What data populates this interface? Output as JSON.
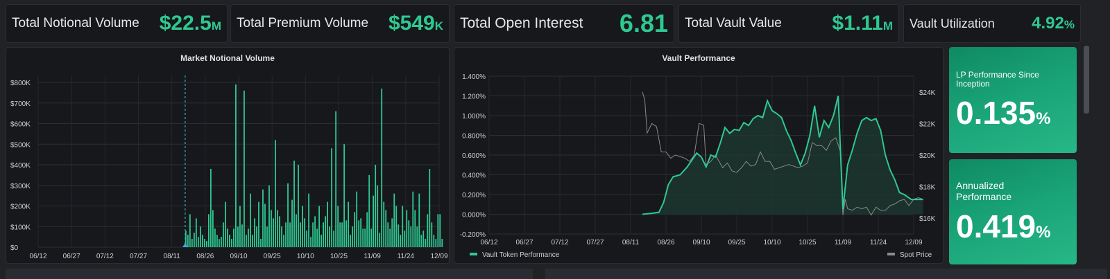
{
  "stats": [
    {
      "label": "Total Notional Volume",
      "value": "$22.5",
      "suffix": "M"
    },
    {
      "label": "Total Premium Volume",
      "value": "$549",
      "suffix": "K"
    },
    {
      "label": "Total Open Interest",
      "value": "6.81",
      "suffix": ""
    },
    {
      "label": "Total Vault Value",
      "value": "$1.11",
      "suffix": "M"
    },
    {
      "label": "Vault Utilization",
      "value": "4.92",
      "suffix": "%"
    }
  ],
  "cards": [
    {
      "title": "LP Performance Since Inception",
      "value": "0.135",
      "suffix": "%"
    },
    {
      "title": "Annualized Performance",
      "value": "0.419",
      "suffix": "%"
    }
  ],
  "colors": {
    "accent": "#2ec991",
    "spot": "#8a8a8a",
    "panel": "#17181c"
  },
  "chart_data": [
    {
      "type": "bar",
      "title": "Market Notional Volume",
      "x_ticks": [
        "06/12",
        "06/27",
        "07/12",
        "07/27",
        "08/11",
        "08/26",
        "09/10",
        "09/25",
        "10/10",
        "10/25",
        "11/09",
        "11/24",
        "12/09"
      ],
      "y_ticks": [
        "$0",
        "$100K",
        "$200K",
        "$300K",
        "$400K",
        "$500K",
        "$600K",
        "$700K",
        "$800K"
      ],
      "ylim": [
        0,
        800000
      ],
      "marker_date": "08/17",
      "values": [
        80000,
        60000,
        160000,
        40000,
        70000,
        140000,
        50000,
        100000,
        60000,
        40000,
        30000,
        160000,
        380000,
        180000,
        90000,
        60000,
        40000,
        50000,
        120000,
        220000,
        90000,
        60000,
        40000,
        90000,
        790000,
        100000,
        200000,
        110000,
        760000,
        60000,
        90000,
        260000,
        60000,
        140000,
        100000,
        220000,
        40000,
        280000,
        210000,
        100000,
        300000,
        180000,
        140000,
        520000,
        180000,
        150000,
        100000,
        60000,
        120000,
        310000,
        120000,
        230000,
        420000,
        160000,
        400000,
        120000,
        200000,
        140000,
        80000,
        260000,
        50000,
        120000,
        150000,
        90000,
        200000,
        60000,
        120000,
        150000,
        220000,
        100000,
        480000,
        80000,
        660000,
        200000,
        120000,
        120000,
        500000,
        130000,
        220000,
        60000,
        100000,
        170000,
        270000,
        130000,
        140000,
        90000,
        90000,
        170000,
        350000,
        90000,
        250000,
        400000,
        300000,
        70000,
        770000,
        220000,
        180000,
        120000,
        90000,
        140000,
        260000,
        200000,
        110000,
        60000,
        200000,
        80000,
        180000,
        130000,
        100000,
        270000,
        180000,
        100000,
        260000,
        60000,
        80000,
        40000,
        160000,
        380000,
        120000,
        60000,
        40000,
        160000,
        160000,
        40000
      ],
      "values_start_date": "08/17"
    },
    {
      "type": "line",
      "title": "Vault Performance",
      "x_ticks": [
        "06/12",
        "06/27",
        "07/12",
        "07/27",
        "08/11",
        "08/26",
        "09/10",
        "09/25",
        "10/10",
        "10/25",
        "11/09",
        "11/24",
        "12/09"
      ],
      "y_left_ticks": [
        "-0.200%",
        "0.000%",
        "0.200%",
        "0.400%",
        "0.600%",
        "0.800%",
        "1.000%",
        "1.200%",
        "1.400%"
      ],
      "y_right_ticks": [
        "$16K",
        "$18K",
        "$20K",
        "$22K",
        "$24K"
      ],
      "ylim_left": [
        -0.2,
        1.4
      ],
      "ylim_right": [
        15000,
        25000
      ],
      "series": [
        {
          "name": "Vault Token Performance",
          "axis": "left",
          "points": [
            [
              "08/16",
              0.0
            ],
            [
              "08/20",
              0.01
            ],
            [
              "08/23",
              0.02
            ],
            [
              "08/25",
              0.12
            ],
            [
              "08/27",
              0.3
            ],
            [
              "08/29",
              0.38
            ],
            [
              "09/01",
              0.4
            ],
            [
              "09/04",
              0.48
            ],
            [
              "09/06",
              0.55
            ],
            [
              "09/08",
              0.62
            ],
            [
              "09/10",
              0.58
            ],
            [
              "09/12",
              0.48
            ],
            [
              "09/14",
              0.6
            ],
            [
              "09/16",
              0.58
            ],
            [
              "09/18",
              0.72
            ],
            [
              "09/20",
              0.88
            ],
            [
              "09/22",
              0.82
            ],
            [
              "09/24",
              0.86
            ],
            [
              "09/26",
              0.85
            ],
            [
              "09/28",
              0.93
            ],
            [
              "09/30",
              0.9
            ],
            [
              "10/02",
              0.97
            ],
            [
              "10/04",
              1.0
            ],
            [
              "10/06",
              0.98
            ],
            [
              "10/08",
              1.15
            ],
            [
              "10/10",
              1.05
            ],
            [
              "10/12",
              1.02
            ],
            [
              "10/14",
              0.98
            ],
            [
              "10/16",
              0.85
            ],
            [
              "10/18",
              0.75
            ],
            [
              "10/20",
              0.62
            ],
            [
              "10/22",
              0.5
            ],
            [
              "10/24",
              0.62
            ],
            [
              "10/26",
              0.8
            ],
            [
              "10/28",
              1.1
            ],
            [
              "10/30",
              0.78
            ],
            [
              "11/01",
              0.95
            ],
            [
              "11/03",
              0.88
            ],
            [
              "11/05",
              1.0
            ],
            [
              "11/07",
              1.2
            ],
            [
              "11/09",
              0.05
            ],
            [
              "11/11",
              0.5
            ],
            [
              "11/13",
              0.65
            ],
            [
              "11/15",
              0.82
            ],
            [
              "11/17",
              0.95
            ],
            [
              "11/19",
              0.98
            ],
            [
              "11/21",
              0.95
            ],
            [
              "11/23",
              0.97
            ],
            [
              "11/25",
              0.85
            ],
            [
              "11/27",
              0.6
            ],
            [
              "11/29",
              0.45
            ],
            [
              "12/01",
              0.35
            ],
            [
              "12/03",
              0.22
            ],
            [
              "12/05",
              0.2
            ],
            [
              "12/08",
              0.15
            ],
            [
              "12/13",
              0.15
            ]
          ]
        },
        {
          "name": "Spot Price",
          "axis": "right",
          "points": [
            [
              "08/16",
              24000
            ],
            [
              "08/17",
              23500
            ],
            [
              "08/18",
              21400
            ],
            [
              "08/20",
              22000
            ],
            [
              "08/22",
              21800
            ],
            [
              "08/24",
              20200
            ],
            [
              "08/26",
              20200
            ],
            [
              "08/28",
              19800
            ],
            [
              "08/30",
              20000
            ],
            [
              "09/01",
              19900
            ],
            [
              "09/03",
              19800
            ],
            [
              "09/05",
              19600
            ],
            [
              "09/07",
              20000
            ],
            [
              "09/09",
              22000
            ],
            [
              "09/11",
              21900
            ],
            [
              "09/12",
              19400
            ],
            [
              "09/14",
              19600
            ],
            [
              "09/16",
              20000
            ],
            [
              "09/19",
              19200
            ],
            [
              "09/21",
              19500
            ],
            [
              "09/23",
              19000
            ],
            [
              "09/25",
              18900
            ],
            [
              "09/27",
              19200
            ],
            [
              "09/29",
              19600
            ],
            [
              "10/01",
              19300
            ],
            [
              "10/03",
              19400
            ],
            [
              "10/05",
              20200
            ],
            [
              "10/07",
              19600
            ],
            [
              "10/09",
              19600
            ],
            [
              "10/11",
              19100
            ],
            [
              "10/13",
              19200
            ],
            [
              "10/15",
              19300
            ],
            [
              "10/17",
              19400
            ],
            [
              "10/19",
              19300
            ],
            [
              "10/21",
              19200
            ],
            [
              "10/23",
              19300
            ],
            [
              "10/25",
              19500
            ],
            [
              "10/27",
              20800
            ],
            [
              "10/29",
              20600
            ],
            [
              "10/31",
              20600
            ],
            [
              "11/02",
              20300
            ],
            [
              "11/04",
              20900
            ],
            [
              "11/06",
              21100
            ],
            [
              "11/08",
              20200
            ],
            [
              "11/09",
              16200
            ],
            [
              "11/10",
              17200
            ],
            [
              "11/11",
              16600
            ],
            [
              "11/13",
              16500
            ],
            [
              "11/15",
              16700
            ],
            [
              "11/17",
              16600
            ],
            [
              "11/19",
              16700
            ],
            [
              "11/21",
              16200
            ],
            [
              "11/23",
              16700
            ],
            [
              "11/25",
              16500
            ],
            [
              "11/27",
              16500
            ],
            [
              "11/29",
              16800
            ],
            [
              "12/01",
              16900
            ],
            [
              "12/03",
              17100
            ],
            [
              "12/05",
              17200
            ],
            [
              "12/07",
              16800
            ],
            [
              "12/09",
              17200
            ],
            [
              "12/11",
              17300
            ],
            [
              "12/13",
              17200
            ]
          ]
        }
      ]
    }
  ]
}
